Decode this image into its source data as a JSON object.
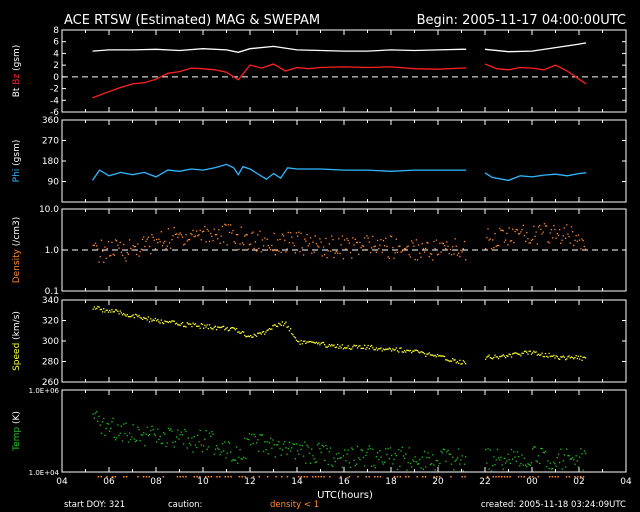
{
  "header": {
    "title": "ACE RTSW (Estimated) MAG & SWEPAM",
    "begin": "Begin: 2005-11-17 04:00:00UTC"
  },
  "footer": {
    "start_doy": "start DOY: 321",
    "caution": "caution:",
    "caution_value": "density < 1",
    "created": "created: 2005-11-18 03:24:09UTC"
  },
  "colors": {
    "bt": "#ffffff",
    "bz": "#ff2020",
    "phi": "#30b8ff",
    "density": "#ff8c30",
    "speed": "#ffff30",
    "temp": "#20c020",
    "caution": "#ff8c30",
    "axes": "#ffffff"
  },
  "chart_data": {
    "type": "line",
    "x_axis": {
      "label": "UTC(hours)",
      "range": [
        4,
        28
      ],
      "tick_labels": [
        "04",
        "06",
        "08",
        "10",
        "12",
        "14",
        "16",
        "18",
        "20",
        "22",
        "00",
        "02",
        "04"
      ]
    },
    "data_gap": [
      21.2,
      22.0
    ],
    "panels": [
      {
        "id": "mag",
        "ylabel": "Bt Bz (gsm)",
        "ylabel_parts": [
          {
            "text": "Bt",
            "color": "#ffffff"
          },
          {
            "text": " Bz",
            "color": "#ff2020"
          },
          {
            "text": " (gsm)",
            "color": "#ffffff"
          }
        ],
        "ylim": [
          -6,
          8
        ],
        "ticks": [
          8,
          6,
          4,
          2,
          0,
          -2,
          -4,
          -6
        ],
        "tick_labels": [
          "8",
          "6",
          "4",
          "2",
          "0",
          "-2",
          "-4",
          "-6"
        ],
        "zero_dashed": 0,
        "series": [
          {
            "name": "Bt",
            "color": "#ffffff",
            "style": "line",
            "x": [
              5.3,
              6,
              7,
              8,
              9,
              10,
              11,
              11.5,
              12,
              13,
              14,
              15,
              16,
              17,
              18,
              19,
              20,
              21,
              21.2,
              22,
              23,
              24,
              25,
              26,
              26.3
            ],
            "y": [
              4.4,
              4.6,
              4.6,
              4.7,
              4.5,
              4.8,
              4.6,
              4.2,
              4.8,
              5.2,
              4.6,
              4.5,
              4.4,
              4.4,
              4.6,
              4.5,
              4.6,
              4.7,
              4.7,
              4.7,
              4.3,
              4.4,
              5.0,
              5.6,
              5.8
            ]
          },
          {
            "name": "Bz",
            "color": "#ff2020",
            "style": "line",
            "x": [
              5.3,
              5.8,
              6.5,
              7,
              7.5,
              8,
              8.5,
              9,
              9.5,
              10,
              10.5,
              11,
              11.5,
              12,
              12.5,
              13,
              13.5,
              14,
              14.5,
              15,
              16,
              17,
              18,
              19,
              20,
              21,
              21.2,
              22,
              22.5,
              23,
              23.5,
              24,
              24.5,
              25,
              25.5,
              26,
              26.3
            ],
            "y": [
              -3.6,
              -2.8,
              -1.8,
              -1.2,
              -1.0,
              -0.4,
              0.6,
              0.9,
              1.5,
              1.4,
              1.2,
              0.8,
              -0.5,
              2.0,
              1.5,
              2.2,
              1.0,
              1.6,
              1.4,
              1.6,
              1.7,
              1.6,
              1.7,
              1.4,
              1.3,
              1.5,
              1.5,
              2.2,
              1.4,
              1.2,
              1.6,
              1.5,
              1.2,
              2.0,
              1.0,
              -0.4,
              -1.2
            ]
          }
        ]
      },
      {
        "id": "phi",
        "ylabel": "Phi (gsm)",
        "ylim": [
          0,
          360
        ],
        "ticks": [
          360,
          270,
          180,
          90
        ],
        "tick_labels": [
          "360",
          "270",
          "180",
          "90"
        ],
        "series": [
          {
            "name": "Phi",
            "color": "#30b8ff",
            "style": "line",
            "x": [
              5.3,
              5.6,
              6,
              6.5,
              7,
              7.5,
              8,
              8.5,
              9,
              9.5,
              10,
              10.5,
              11,
              11.3,
              11.5,
              11.7,
              12,
              12.3,
              12.7,
              13,
              13.3,
              13.6,
              14,
              15,
              16,
              17,
              18,
              19,
              20,
              21,
              21.2,
              22,
              22.3,
              23,
              23.5,
              24,
              24.5,
              25,
              25.5,
              26,
              26.3
            ],
            "y": [
              95,
              140,
              115,
              130,
              120,
              130,
              110,
              140,
              135,
              145,
              140,
              150,
              165,
              150,
              120,
              155,
              145,
              125,
              100,
              125,
              105,
              150,
              145,
              145,
              140,
              140,
              135,
              140,
              140,
              140,
              140,
              128,
              108,
              95,
              115,
              110,
              118,
              122,
              115,
              125,
              128
            ]
          }
        ]
      },
      {
        "id": "density",
        "ylabel": "Density (/cm3)",
        "scale": "log",
        "ylim": [
          0.1,
          10
        ],
        "ticks": [
          10,
          1,
          0.1
        ],
        "tick_labels": [
          "10.0",
          "1.0",
          "0.1"
        ],
        "ref_dashed": 1,
        "series": [
          {
            "name": "Density",
            "color": "#ff8c30",
            "style": "dots",
            "x": [
              5.3,
              6,
              7,
              8,
              9,
              10,
              11,
              11.5,
              12,
              13,
              14,
              15,
              16,
              17,
              18,
              19,
              20,
              21,
              21.2,
              22,
              23,
              24,
              25,
              26,
              26.3
            ],
            "y": [
              0.9,
              1.0,
              1.1,
              1.6,
              2.2,
              2.7,
              2.5,
              2.0,
              1.8,
              1.5,
              1.5,
              1.3,
              1.2,
              1.3,
              1.2,
              1.1,
              1.1,
              1.1,
              1.0,
              2.0,
              2.2,
              2.5,
              2.6,
              2.0,
              1.9
            ]
          }
        ]
      },
      {
        "id": "speed",
        "ylabel": "Speed (km/s)",
        "ylim": [
          260,
          340
        ],
        "ticks": [
          340,
          320,
          300,
          280,
          260
        ],
        "tick_labels": [
          "340",
          "320",
          "300",
          "280",
          "260"
        ],
        "series": [
          {
            "name": "Speed",
            "color": "#ffff30",
            "style": "dots",
            "x": [
              5.3,
              6,
              7,
              8,
              9,
              10,
              11,
              11.5,
              12,
              12.5,
              13,
              13.5,
              14,
              15,
              16,
              17,
              18,
              19,
              20,
              21,
              21.2,
              22,
              23,
              24,
              25,
              26,
              26.3
            ],
            "y": [
              333,
              330,
              325,
              320,
              317,
              315,
              313,
              310,
              305,
              308,
              315,
              318,
              300,
              297,
              295,
              294,
              293,
              290,
              285,
              280,
              279,
              285,
              286,
              290,
              285,
              284,
              283
            ]
          }
        ]
      },
      {
        "id": "temp",
        "ylabel": "Temp (K)",
        "scale": "log",
        "ylim": [
          10000,
          1000000
        ],
        "ticks": [
          1000000,
          10000
        ],
        "tick_labels": [
          "1.0E+06",
          "1.0E+04"
        ],
        "series": [
          {
            "name": "Temp",
            "color": "#20c020",
            "style": "dots",
            "x": [
              5.3,
              6,
              7,
              8,
              9,
              10,
              11,
              11.5,
              12,
              13,
              14,
              15,
              16,
              17,
              18,
              19,
              20,
              21,
              21.2,
              22,
              23,
              24,
              25,
              26,
              26.3
            ],
            "y": [
              180000,
              120000,
              100000,
              70000,
              60000,
              60000,
              40000,
              30000,
              50000,
              40000,
              30000,
              28000,
              25000,
              25000,
              22000,
              22000,
              22000,
              20000,
              20000,
              20000,
              20000,
              25000,
              22000,
              20000,
              20000
            ]
          }
        ]
      }
    ]
  }
}
